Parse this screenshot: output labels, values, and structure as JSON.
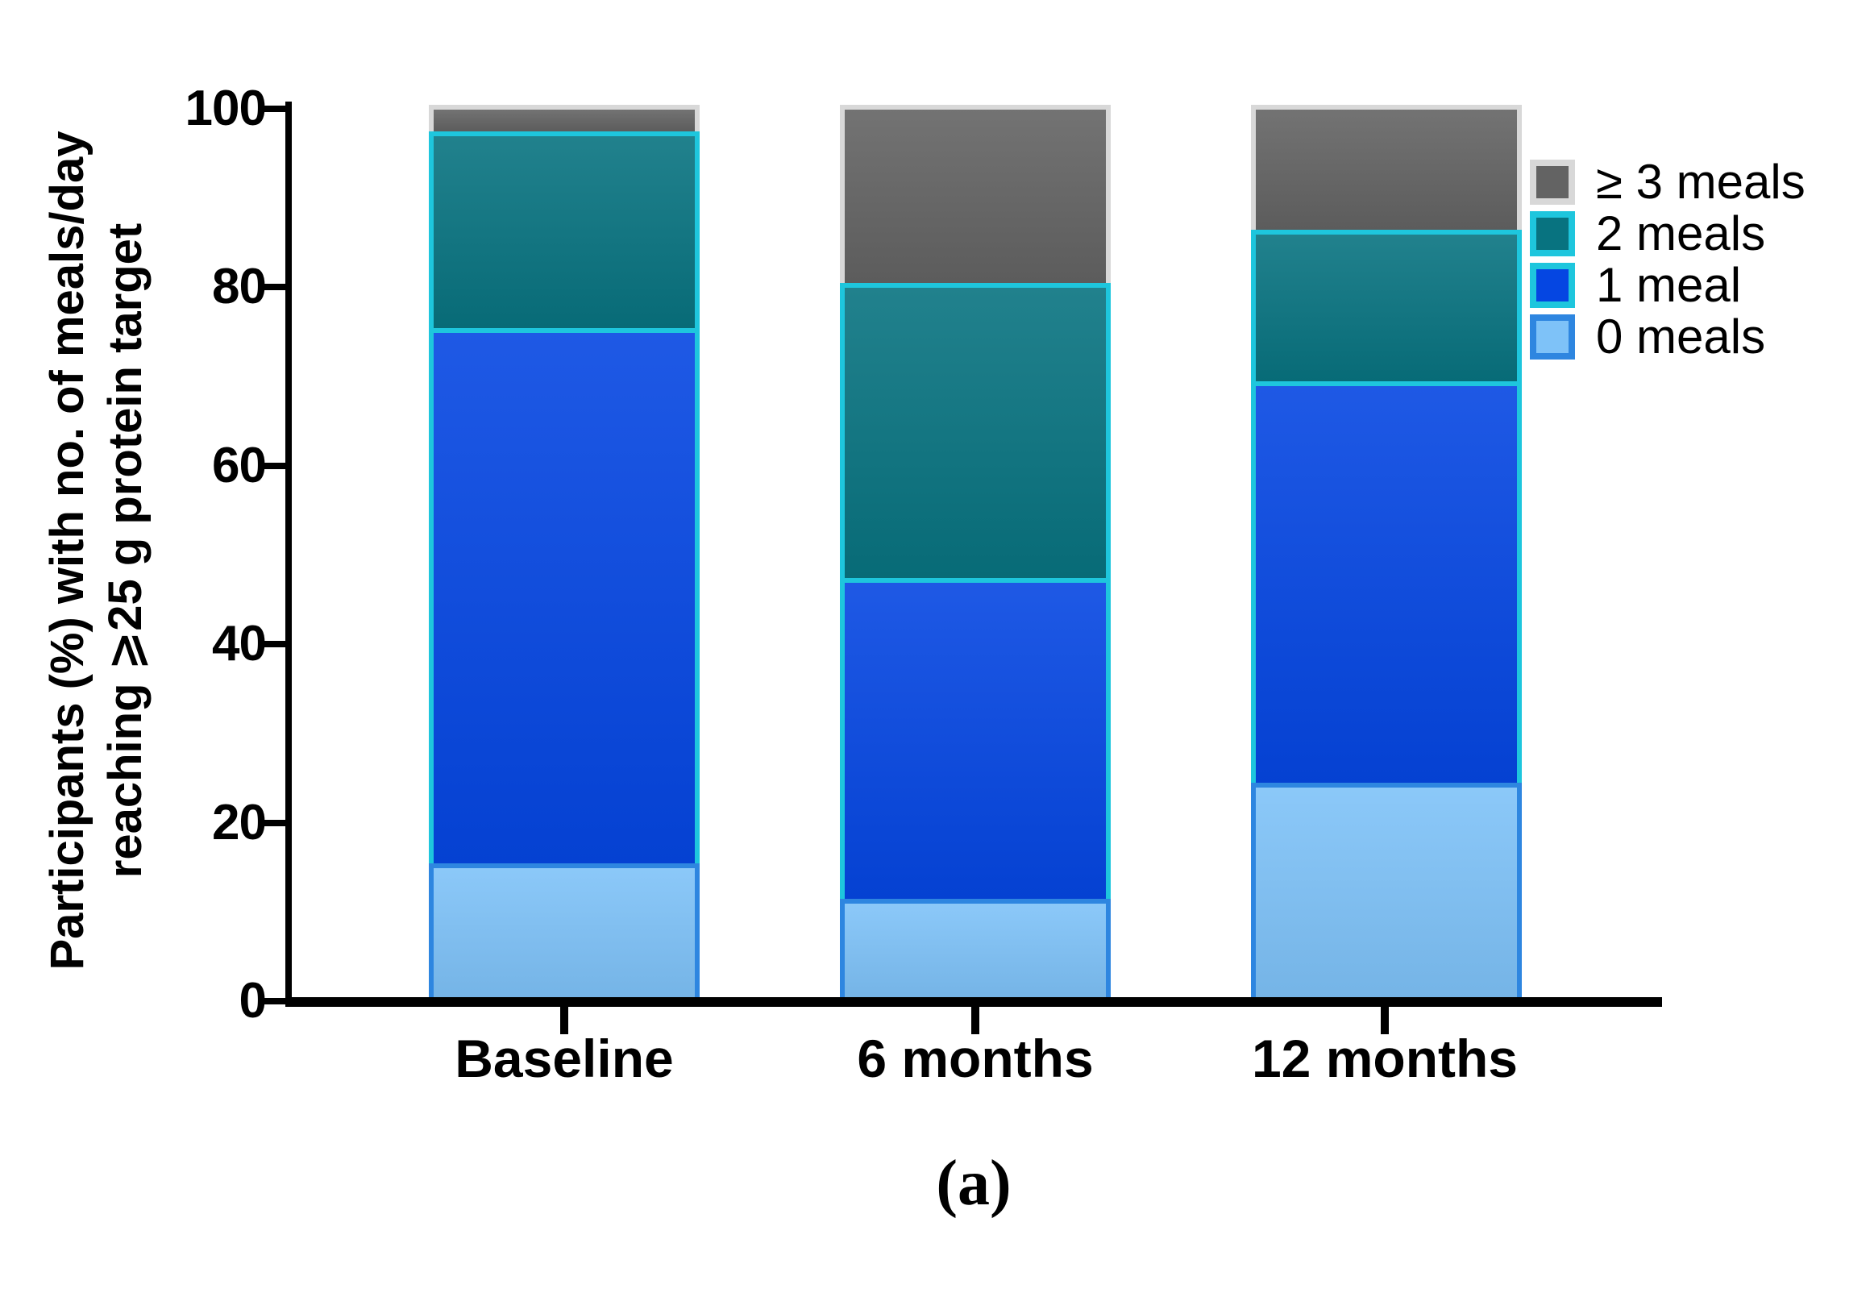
{
  "figure": {
    "caption": "(a)"
  },
  "y_axis": {
    "title_line1": "Participants (%) with no. of meals/day",
    "title_line2": "reaching ⩾25 g protein target",
    "ticks": [
      0,
      20,
      40,
      60,
      80,
      100
    ]
  },
  "colors": {
    "axis": "#000000",
    "background": "#ffffff"
  },
  "chart_data": {
    "type": "bar",
    "subtype": "stacked-vertical",
    "categories": [
      "Baseline",
      "6 months",
      "12 months"
    ],
    "series": [
      {
        "name": "0 meals",
        "values": [
          15,
          11,
          24
        ],
        "fill": "#7EC2F8",
        "stroke": "#2E86E0"
      },
      {
        "name": "1 meal",
        "values": [
          60,
          36,
          45
        ],
        "fill": "#0546E2",
        "stroke": "#1EC6DD"
      },
      {
        "name": "2 meals",
        "values": [
          22,
          33,
          17
        ],
        "fill": "#087380",
        "stroke": "#1EC6DD"
      },
      {
        "name": "≥ 3 meals",
        "values": [
          3,
          20,
          14
        ],
        "fill": "#636363",
        "stroke": "#D8D8D8"
      }
    ],
    "stack_order_note": "series listed bottom-to-top; legend displays top-to-bottom",
    "title": "",
    "xlabel": "",
    "ylabel": "Participants (%) with no. of meals/day reaching ⩾25 g protein target",
    "ylim": [
      0,
      100
    ],
    "grid": false,
    "legend_position": "right"
  }
}
